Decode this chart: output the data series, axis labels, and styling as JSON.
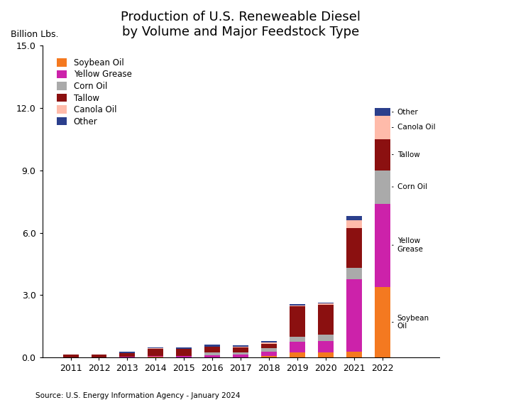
{
  "title": "Production of U.S. Reneweable Diesel\nby Volume and Major Feedstock Type",
  "ylabel": "Billion Lbs.",
  "source": "Source: U.S. Energy Information Agency - January 2024",
  "years": [
    2011,
    2012,
    2013,
    2014,
    2015,
    2016,
    2017,
    2018,
    2019,
    2020,
    2021,
    2022
  ],
  "feedstocks": [
    "Soybean Oil",
    "Yellow Grease",
    "Corn Oil",
    "Tallow",
    "Canola Oil",
    "Other"
  ],
  "colors": [
    "#F47920",
    "#CC22AA",
    "#AAAAAA",
    "#8B1010",
    "#FFBBAA",
    "#2B3F8C"
  ],
  "data": {
    "Soybean Oil": [
      0.0,
      0.0,
      0.0,
      0.05,
      0.02,
      0.02,
      0.02,
      0.1,
      0.25,
      0.25,
      0.28,
      3.4
    ],
    "Yellow Grease": [
      0.02,
      0.02,
      0.05,
      0.05,
      0.05,
      0.1,
      0.12,
      0.2,
      0.52,
      0.55,
      3.5,
      4.0
    ],
    "Corn Oil": [
      0.0,
      0.0,
      0.0,
      0.0,
      0.0,
      0.12,
      0.12,
      0.15,
      0.25,
      0.3,
      0.55,
      1.6
    ],
    "Tallow": [
      0.14,
      0.12,
      0.18,
      0.33,
      0.35,
      0.28,
      0.25,
      0.22,
      1.45,
      1.45,
      1.9,
      1.5
    ],
    "Canola Oil": [
      0.0,
      0.0,
      0.0,
      0.02,
      0.02,
      0.02,
      0.02,
      0.05,
      0.05,
      0.05,
      0.38,
      1.1
    ],
    "Other": [
      0.0,
      0.0,
      0.05,
      0.05,
      0.05,
      0.08,
      0.08,
      0.08,
      0.05,
      0.05,
      0.18,
      0.38
    ]
  },
  "ylim": [
    0,
    15.0
  ],
  "yticks": [
    0.0,
    3.0,
    6.0,
    9.0,
    12.0,
    15.0
  ],
  "background_color": "#FFFFFF",
  "bar_width": 0.55,
  "legend_items": [
    {
      "label": "Soybean Oil",
      "color": "#F47920"
    },
    {
      "label": "Yellow Grease",
      "color": "#CC22AA"
    },
    {
      "label": "Corn Oil",
      "color": "#AAAAAA"
    },
    {
      "label": "Tallow",
      "color": "#8B1010"
    },
    {
      "label": "Canola Oil",
      "color": "#FFBBAA"
    },
    {
      "label": "Other",
      "color": "#2B3F8C"
    }
  ],
  "annotations_2022": [
    {
      "label": "Soybean\nOil",
      "feedstock": "Soybean Oil"
    },
    {
      "label": "Yellow\nGrease",
      "feedstock": "Yellow Grease"
    },
    {
      "label": "Corn Oil",
      "feedstock": "Corn Oil"
    },
    {
      "label": "Canola Oil",
      "feedstock": "Canola Oil"
    },
    {
      "label": "Tallow",
      "feedstock": "Tallow"
    },
    {
      "label": "Other",
      "feedstock": "Other"
    }
  ]
}
